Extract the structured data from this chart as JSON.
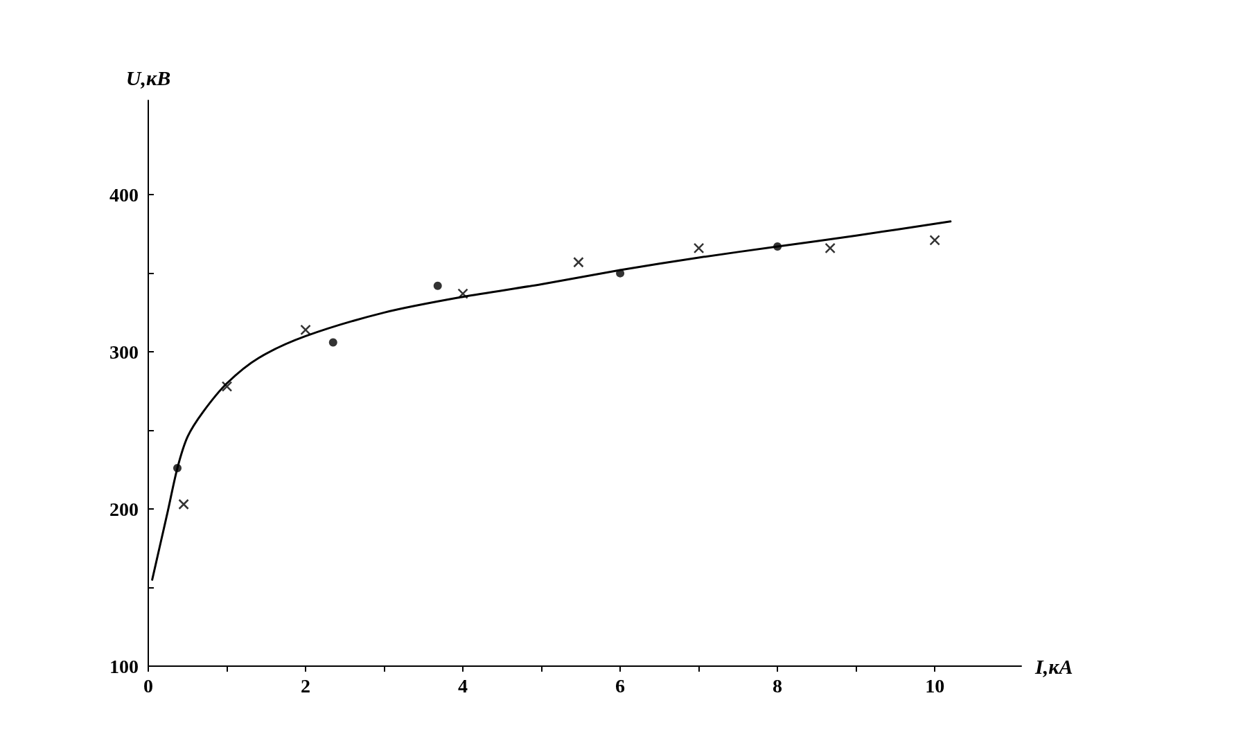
{
  "chart_data": {
    "type": "line",
    "xlabel": "I,кА",
    "ylabel": "U,кВ",
    "xlim": [
      0,
      11.1
    ],
    "ylim": [
      100,
      460
    ],
    "xticks": [
      0,
      {
        "value": 1,
        "label": null
      },
      2,
      {
        "value": 3,
        "label": null
      },
      4,
      {
        "value": 5,
        "label": null
      },
      6,
      {
        "value": 7,
        "label": null
      },
      8,
      {
        "value": 9,
        "label": null
      },
      10
    ],
    "yticks": [
      100,
      {
        "value": 150,
        "label": null
      },
      200,
      {
        "value": 250,
        "label": null
      },
      300,
      {
        "value": 350,
        "label": null
      },
      400
    ],
    "grid": false,
    "series": [
      {
        "color": "#000000",
        "marker": "none",
        "line_style": "solid",
        "x": [
          0.05,
          0.15,
          0.25,
          0.37,
          0.5,
          0.7,
          1.0,
          1.4,
          2.0,
          3.0,
          4.0,
          5.0,
          6.0,
          7.0,
          8.0,
          9.0,
          10.2
        ],
        "values": [
          155,
          177,
          199,
          226,
          246,
          262,
          280,
          296,
          310,
          325,
          335,
          343,
          352,
          360,
          367,
          374,
          383
        ]
      },
      {
        "type": "scatter",
        "color": "#000000",
        "marker": "circle",
        "x": [
          0.37,
          2.35,
          3.68,
          6.0,
          8.0
        ],
        "values": [
          226,
          306,
          342,
          350,
          367
        ]
      },
      {
        "type": "scatter",
        "color": "#000000",
        "marker": "cross",
        "x": [
          0.45,
          1.0,
          2.0,
          4.0,
          5.47,
          7.0,
          8.67,
          10.0
        ],
        "values": [
          203,
          278,
          314,
          337,
          357,
          366,
          366,
          371
        ]
      }
    ]
  }
}
